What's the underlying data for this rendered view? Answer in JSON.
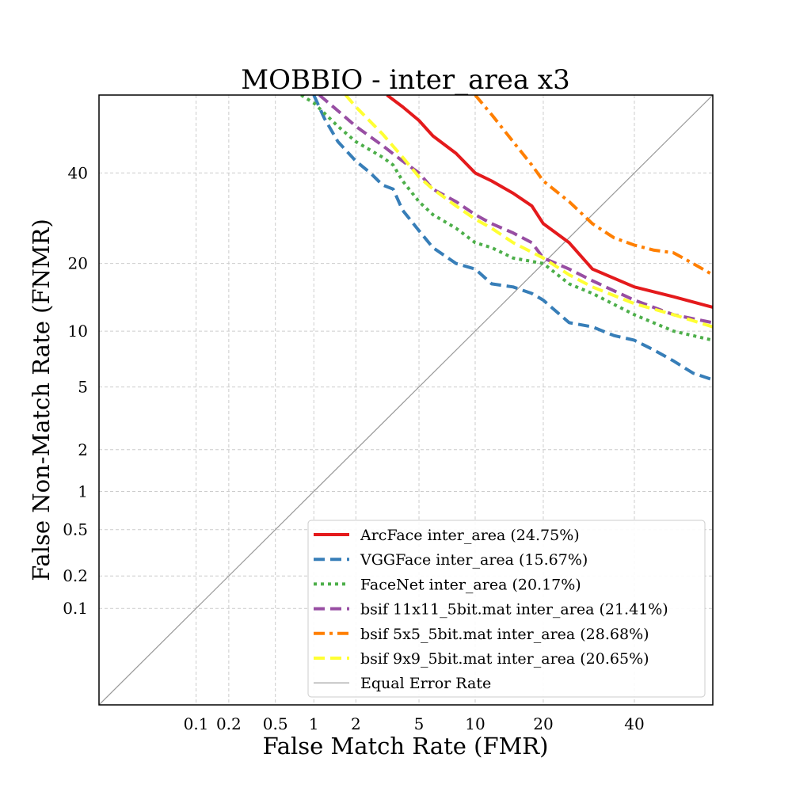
{
  "chart_data": {
    "type": "line",
    "title": "MOBBIO - inter_area x3",
    "xlabel": "False Match Rate (FMR)",
    "ylabel": "False Non-Match Rate (FNMR)",
    "x_scale": "probit",
    "y_scale": "probit",
    "xlim": [
      0.01,
      60
    ],
    "ylim": [
      0.01,
      60
    ],
    "x_ticks": [
      0.1,
      0.2,
      0.5,
      1,
      2,
      5,
      10,
      20,
      40
    ],
    "x_tick_labels": [
      "0.1",
      "0.2",
      "0.5",
      "1",
      "2",
      "5",
      "10",
      "20",
      "40"
    ],
    "y_ticks": [
      0.1,
      0.2,
      0.5,
      1,
      2,
      5,
      10,
      20,
      40
    ],
    "y_tick_labels": [
      "0.1",
      "0.2",
      "0.5",
      "1",
      "2",
      "5",
      "10",
      "20",
      "40"
    ],
    "grid": true,
    "legend_position": "bottom-right",
    "series": [
      {
        "name": "ArcFace inter_area (24.75%)",
        "color": "#e41a1c",
        "style": "solid",
        "x": [
          3.2,
          4.0,
          5.0,
          6.0,
          8.0,
          10.0,
          12.0,
          15.0,
          18.0,
          20.0,
          25.0,
          30.0,
          40.0,
          50.0,
          60.0
        ],
        "y": [
          60.0,
          57.0,
          53.5,
          49.5,
          45.0,
          40.0,
          38.0,
          35.0,
          32.0,
          28.0,
          24.0,
          19.0,
          16.0,
          14.5,
          13.0
        ]
      },
      {
        "name": "VGGFace inter_area (15.67%)",
        "color": "#377eb8",
        "style": "dashed",
        "x": [
          1.0,
          1.2,
          1.5,
          2.0,
          2.5,
          3.0,
          3.5,
          4.0,
          5.0,
          6.0,
          8.0,
          10.0,
          12.0,
          15.0,
          18.0,
          20.0,
          25.0,
          30.0,
          35.0,
          40.0,
          45.0,
          50.0,
          55.0,
          60.0
        ],
        "y": [
          60.0,
          54.0,
          48.0,
          43.0,
          40.0,
          37.0,
          36.0,
          31.0,
          26.5,
          23.0,
          20.0,
          19.0,
          16.5,
          16.0,
          15.0,
          14.0,
          11.0,
          10.5,
          9.5,
          9.0,
          8.0,
          7.0,
          6.0,
          5.5
        ]
      },
      {
        "name": "FaceNet inter_area (20.17%)",
        "color": "#4daf4a",
        "style": "dotted",
        "x": [
          0.8,
          1.0,
          1.5,
          2.0,
          3.0,
          3.5,
          4.0,
          5.0,
          6.0,
          8.0,
          10.0,
          12.0,
          15.0,
          20.0,
          25.0,
          30.0,
          40.0,
          50.0,
          60.0
        ],
        "y": [
          60.0,
          58.0,
          52.0,
          48.0,
          44.0,
          42.0,
          38.0,
          33.0,
          30.0,
          27.0,
          24.0,
          23.0,
          21.0,
          20.0,
          16.5,
          15.0,
          12.0,
          10.0,
          9.0
        ]
      },
      {
        "name": "bsif 11x11_5bit.mat inter_area (21.41%)",
        "color": "#984ea3",
        "style": "dashed",
        "x": [
          1.1,
          1.5,
          2.0,
          3.0,
          4.0,
          5.0,
          6.0,
          8.0,
          10.0,
          12.0,
          15.0,
          18.0,
          20.0,
          25.0,
          30.0,
          40.0,
          50.0,
          60.0
        ],
        "y": [
          60.0,
          56.0,
          52.0,
          47.0,
          43.0,
          40.0,
          36.0,
          33.0,
          30.0,
          28.0,
          26.0,
          24.0,
          21.0,
          19.0,
          17.0,
          14.0,
          12.0,
          11.0
        ]
      },
      {
        "name": "bsif 5x5_5bit.mat inter_area (28.68%)",
        "color": "#ff7f00",
        "style": "dashdot",
        "x": [
          10.0,
          12.0,
          15.0,
          18.0,
          20.0,
          25.0,
          30.0,
          35.0,
          40.0,
          45.0,
          50.0,
          55.0,
          60.0
        ],
        "y": [
          60.0,
          55.0,
          48.0,
          42.0,
          38.0,
          33.0,
          28.0,
          25.0,
          23.5,
          22.5,
          22.0,
          20.0,
          18.0
        ]
      },
      {
        "name": "bsif 9x9_5bit.mat inter_area (20.65%)",
        "color": "#ffff33",
        "style": "dashed",
        "x": [
          1.7,
          2.0,
          3.0,
          4.0,
          5.0,
          6.0,
          8.0,
          10.0,
          12.0,
          15.0,
          20.0,
          25.0,
          30.0,
          40.0,
          50.0,
          60.0
        ],
        "y": [
          60.0,
          57.0,
          50.0,
          44.0,
          39.0,
          36.0,
          32.0,
          29.0,
          27.0,
          24.0,
          21.0,
          18.0,
          16.0,
          13.5,
          12.0,
          10.5
        ]
      }
    ],
    "reference": {
      "name": "Equal Error Rate",
      "color": "#999999"
    }
  }
}
